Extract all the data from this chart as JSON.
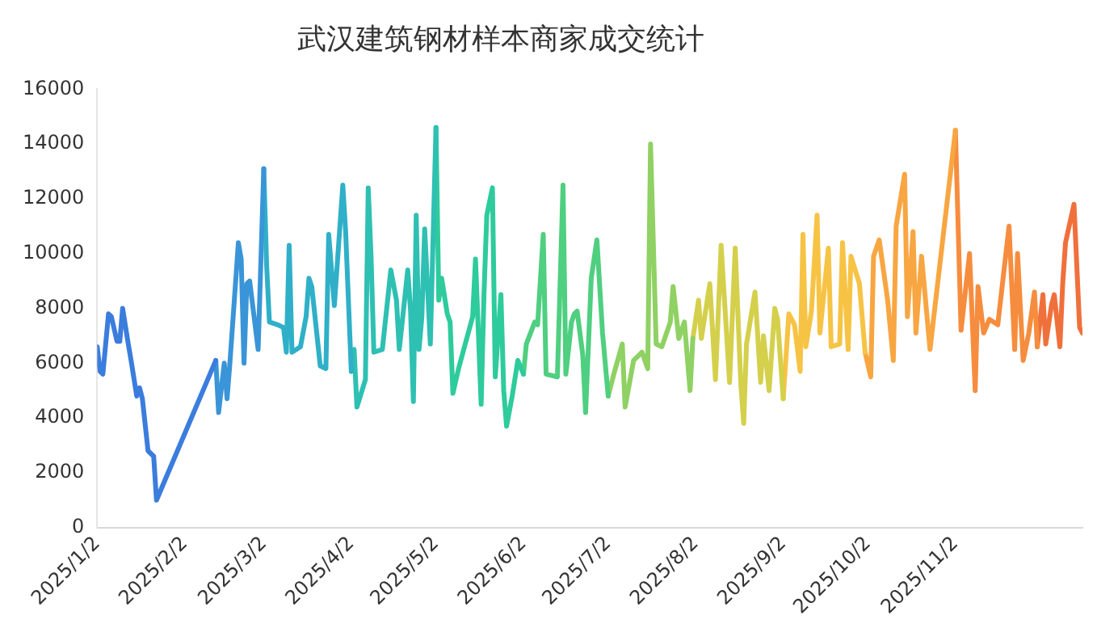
{
  "chart_data": {
    "type": "line",
    "title": "武汉建筑钢材样本商家成交统计",
    "xlim": [
      "2025-01-02",
      "2025-12-17"
    ],
    "xticks": [
      {
        "value": "2025-01-02",
        "label": "2025/1/2"
      },
      {
        "value": "2025-02-02",
        "label": "2025/2/2"
      },
      {
        "value": "2025-03-02",
        "label": "2025/3/2"
      },
      {
        "value": "2025-04-02",
        "label": "2025/4/2"
      },
      {
        "value": "2025-05-02",
        "label": "2025/5/2"
      },
      {
        "value": "2025-06-02",
        "label": "2025/6/2"
      },
      {
        "value": "2025-07-02",
        "label": "2025/7/2"
      },
      {
        "value": "2025-08-02",
        "label": "2025/8/2"
      },
      {
        "value": "2025-09-02",
        "label": "2025/9/2"
      },
      {
        "value": "2025-10-02",
        "label": "2025/10/2"
      },
      {
        "value": "2025-11-02",
        "label": "2025/11/2"
      }
    ],
    "ylim": [
      0,
      16000
    ],
    "yticks": [
      0,
      2000,
      4000,
      6000,
      8000,
      10000,
      12000,
      14000,
      16000
    ],
    "grid": false,
    "legend": false,
    "marker": "none",
    "line_style": "solid",
    "series": [
      {
        "color": "#3b7ddd",
        "x": [
          "2025-01-02",
          "2025-01-03",
          "2025-01-04",
          "2025-01-06",
          "2025-01-07",
          "2025-01-09",
          "2025-01-10",
          "2025-01-11",
          "2025-01-13",
          "2025-01-14",
          "2025-01-16",
          "2025-01-17",
          "2025-01-18",
          "2025-01-20",
          "2025-01-22",
          "2025-01-23",
          "2025-02-13"
        ],
        "values": [
          6600,
          5700,
          5600,
          7800,
          7700,
          6800,
          6800,
          8000,
          6700,
          6100,
          4800,
          5100,
          4700,
          2800,
          2600,
          1000,
          6100
        ]
      },
      {
        "color": "#3a95d8",
        "x": [
          "2025-02-13",
          "2025-02-14",
          "2025-02-16",
          "2025-02-17",
          "2025-02-18",
          "2025-02-21",
          "2025-02-22",
          "2025-02-23",
          "2025-02-24",
          "2025-02-25",
          "2025-02-28",
          "2025-03-02"
        ],
        "values": [
          6100,
          4200,
          6000,
          4700,
          6000,
          10400,
          9800,
          6000,
          8900,
          9000,
          6500,
          13100
        ]
      },
      {
        "color": "#2fb0c8",
        "x": [
          "2025-03-02",
          "2025-03-03",
          "2025-03-04",
          "2025-03-07",
          "2025-03-09",
          "2025-03-10",
          "2025-03-11",
          "2025-03-12",
          "2025-03-15",
          "2025-03-17",
          "2025-03-18",
          "2025-03-19",
          "2025-03-22",
          "2025-03-24",
          "2025-03-25",
          "2025-03-27",
          "2025-03-30",
          "2025-03-31",
          "2025-04-02"
        ],
        "values": [
          13100,
          9600,
          7500,
          7400,
          7300,
          6400,
          10300,
          6400,
          6600,
          7700,
          9100,
          8800,
          5900,
          5800,
          10700,
          8100,
          12500,
          10800,
          5700
        ]
      },
      {
        "color": "#2ec0b2",
        "x": [
          "2025-04-02",
          "2025-04-03",
          "2025-04-04",
          "2025-04-07",
          "2025-04-08",
          "2025-04-09",
          "2025-04-10",
          "2025-04-13",
          "2025-04-16",
          "2025-04-18",
          "2025-04-19",
          "2025-04-22",
          "2025-04-23",
          "2025-04-24",
          "2025-04-25",
          "2025-04-26",
          "2025-04-27",
          "2025-04-28",
          "2025-04-30",
          "2025-05-02"
        ],
        "values": [
          5700,
          6500,
          4400,
          5400,
          12400,
          9900,
          6400,
          6500,
          9400,
          8300,
          6500,
          9400,
          7900,
          4600,
          11400,
          6500,
          7700,
          10900,
          6700,
          14600
        ]
      },
      {
        "color": "#2ecb9c",
        "x": [
          "2025-05-02",
          "2025-05-03",
          "2025-05-04",
          "2025-05-06",
          "2025-05-07",
          "2025-05-08",
          "2025-05-10",
          "2025-05-15",
          "2025-05-16",
          "2025-05-18",
          "2025-05-19",
          "2025-05-20",
          "2025-05-22",
          "2025-05-23",
          "2025-05-25",
          "2025-05-26",
          "2025-05-27",
          "2025-05-29",
          "2025-05-31",
          "2025-06-02"
        ],
        "values": [
          14600,
          8300,
          9100,
          7800,
          7500,
          4900,
          5800,
          7700,
          9800,
          4500,
          8500,
          11400,
          12400,
          5500,
          8500,
          5000,
          3700,
          4800,
          6100,
          5600
        ]
      },
      {
        "color": "#4fcf80",
        "x": [
          "2025-06-02",
          "2025-06-03",
          "2025-06-06",
          "2025-06-07",
          "2025-06-09",
          "2025-06-10",
          "2025-06-14",
          "2025-06-16",
          "2025-06-17",
          "2025-06-19",
          "2025-06-20",
          "2025-06-21",
          "2025-06-23",
          "2025-06-24",
          "2025-06-26",
          "2025-06-28",
          "2025-06-30",
          "2025-07-02"
        ],
        "values": [
          5600,
          6700,
          7500,
          7400,
          10700,
          5600,
          5500,
          12500,
          5600,
          7500,
          7800,
          7900,
          6300,
          4200,
          9100,
          10500,
          7100,
          4800
        ]
      },
      {
        "color": "#8fd163",
        "x": [
          "2025-07-02",
          "2025-07-04",
          "2025-07-07",
          "2025-07-08",
          "2025-07-11",
          "2025-07-14",
          "2025-07-16",
          "2025-07-17",
          "2025-07-19",
          "2025-07-21",
          "2025-07-24",
          "2025-07-25",
          "2025-07-27",
          "2025-07-29",
          "2025-07-31",
          "2025-08-01"
        ],
        "values": [
          4800,
          5600,
          6700,
          4400,
          6100,
          6400,
          5800,
          14000,
          6700,
          6600,
          7500,
          8800,
          6900,
          7500,
          5000,
          6900
        ]
      },
      {
        "color": "#d4d04c",
        "x": [
          "2025-08-01",
          "2025-08-03",
          "2025-08-04",
          "2025-08-07",
          "2025-08-09",
          "2025-08-11",
          "2025-08-14",
          "2025-08-16",
          "2025-08-18",
          "2025-08-19",
          "2025-08-20",
          "2025-08-23",
          "2025-08-25",
          "2025-08-26",
          "2025-08-28",
          "2025-08-30",
          "2025-08-31",
          "2025-09-02"
        ],
        "values": [
          6900,
          8300,
          6900,
          8900,
          5400,
          10300,
          5300,
          10200,
          5200,
          3800,
          6700,
          8600,
          5300,
          7000,
          5000,
          8000,
          7600,
          4700
        ]
      },
      {
        "color": "#f6c344",
        "x": [
          "2025-09-02",
          "2025-09-04",
          "2025-09-06",
          "2025-09-08",
          "2025-09-09",
          "2025-09-10",
          "2025-09-12",
          "2025-09-14",
          "2025-09-15",
          "2025-09-18",
          "2025-09-19",
          "2025-09-22",
          "2025-09-23",
          "2025-09-25",
          "2025-09-26",
          "2025-09-29",
          "2025-10-01"
        ],
        "values": [
          4700,
          7800,
          7400,
          5700,
          10700,
          6600,
          7900,
          11400,
          7100,
          10200,
          6600,
          6700,
          10400,
          6500,
          9900,
          8900,
          6400
        ]
      },
      {
        "color": "#f8a642",
        "x": [
          "2025-10-01",
          "2025-10-03",
          "2025-10-04",
          "2025-10-06",
          "2025-10-09",
          "2025-10-11",
          "2025-10-12",
          "2025-10-15",
          "2025-10-16",
          "2025-10-18",
          "2025-10-19",
          "2025-10-21",
          "2025-10-24",
          "2025-11-02"
        ],
        "values": [
          6400,
          5500,
          9900,
          10500,
          8300,
          6100,
          11000,
          12900,
          7700,
          10800,
          7100,
          9900,
          6500,
          14500
        ]
      },
      {
        "color": "#f68d3e",
        "x": [
          "2025-11-02",
          "2025-11-04",
          "2025-11-07",
          "2025-11-09",
          "2025-11-10",
          "2025-11-12",
          "2025-11-14",
          "2025-11-17",
          "2025-11-21",
          "2025-11-23",
          "2025-11-24",
          "2025-11-26",
          "2025-11-28",
          "2025-11-30",
          "2025-12-01"
        ],
        "values": [
          14500,
          7200,
          10000,
          5000,
          8800,
          7100,
          7600,
          7400,
          11000,
          6500,
          10000,
          6100,
          7100,
          8600,
          6600
        ]
      },
      {
        "color": "#f0703c",
        "x": [
          "2025-12-01",
          "2025-12-03",
          "2025-12-04",
          "2025-12-06",
          "2025-12-07",
          "2025-12-09",
          "2025-12-10",
          "2025-12-11",
          "2025-12-14",
          "2025-12-16",
          "2025-12-17"
        ],
        "values": [
          6600,
          8500,
          6700,
          8100,
          8500,
          6600,
          8900,
          10400,
          11800,
          7300,
          7100
        ]
      }
    ]
  }
}
